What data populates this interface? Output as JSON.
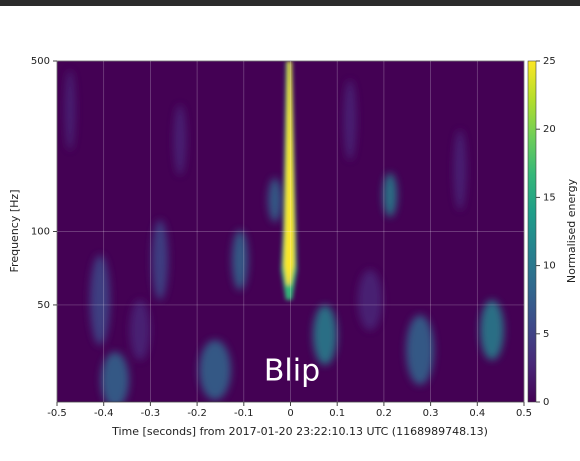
{
  "chart_data": {
    "type": "heatmap",
    "xlabel": "Time [seconds] from 2017-01-20 23:22:10.13 UTC (1168989748.13)",
    "ylabel": "Frequency [Hz]",
    "colorbar_label": "Normalised energy",
    "annotation": "Blip",
    "xlim": [
      -0.5,
      0.5
    ],
    "xticks": [
      -0.5,
      -0.4,
      -0.3,
      -0.2,
      -0.1,
      0,
      0.1,
      0.2,
      0.3,
      0.4,
      0.5
    ],
    "ylim": [
      20,
      500
    ],
    "yticks": [
      50,
      100,
      500
    ],
    "yscale": "log",
    "grid": true,
    "clim": [
      0,
      25
    ],
    "cticks": [
      0,
      5,
      10,
      15,
      20,
      25
    ],
    "colormap": [
      "#440154",
      "#482878",
      "#3e4989",
      "#31688e",
      "#26828e",
      "#1f9e89",
      "#35b779",
      "#6ece58",
      "#b5de2b",
      "#fde725"
    ]
  }
}
